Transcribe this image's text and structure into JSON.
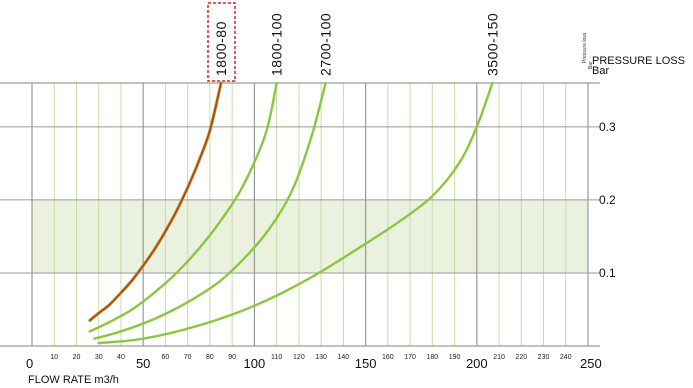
{
  "chart_data": {
    "type": "line",
    "title": "",
    "xlabel": "FLOW RATE m3/h",
    "ylabel": "PRESSURE LOSS",
    "ylabel_unit": "Bar",
    "ylabel_small": "Pressure loss",
    "ylabel_small_unit": "Bar",
    "xlim": [
      0,
      250
    ],
    "ylim": [
      0,
      0.36
    ],
    "x_major_ticks": [
      "0",
      "50",
      "100",
      "150",
      "200",
      "250"
    ],
    "x_minor_ticks": [
      "10",
      "20",
      "30",
      "40",
      "60",
      "70",
      "80",
      "90",
      "110",
      "120",
      "130",
      "140",
      "160",
      "170",
      "180",
      "190",
      "210",
      "220",
      "230",
      "240"
    ],
    "y_ticks": [
      "0.1",
      "0.2",
      "0.3"
    ],
    "shaded_band": [
      0.1,
      0.2
    ],
    "grid": true,
    "highlight_series": "1800-80",
    "colors": {
      "series": "#8cc63f",
      "highlight_curve": "#d8321e",
      "highlight_box": "#e02020",
      "band": "#eaf1de",
      "major_grid": "#9a9a9a",
      "minor_grid": "#c9dca4"
    },
    "series": [
      {
        "name": "1800-80",
        "x": [
          26,
          30,
          35,
          40,
          45,
          50,
          55,
          60,
          65,
          70,
          75,
          80,
          85
        ],
        "y": [
          0.035,
          0.045,
          0.057,
          0.073,
          0.09,
          0.11,
          0.132,
          0.157,
          0.185,
          0.217,
          0.253,
          0.295,
          0.36
        ]
      },
      {
        "name": "1800-100",
        "x": [
          26,
          35,
          45,
          55,
          65,
          75,
          85,
          95,
          105,
          110
        ],
        "y": [
          0.02,
          0.033,
          0.05,
          0.073,
          0.1,
          0.133,
          0.172,
          0.22,
          0.29,
          0.36
        ]
      },
      {
        "name": "2700-100",
        "x": [
          28,
          40,
          55,
          70,
          85,
          100,
          110,
          118,
          126,
          132
        ],
        "y": [
          0.01,
          0.02,
          0.037,
          0.06,
          0.09,
          0.135,
          0.175,
          0.22,
          0.29,
          0.36
        ]
      },
      {
        "name": "3500-150",
        "x": [
          30,
          50,
          75,
          100,
          125,
          150,
          165,
          180,
          192,
          200,
          207
        ],
        "y": [
          0.004,
          0.01,
          0.028,
          0.055,
          0.093,
          0.14,
          0.17,
          0.205,
          0.25,
          0.3,
          0.36
        ]
      }
    ]
  }
}
